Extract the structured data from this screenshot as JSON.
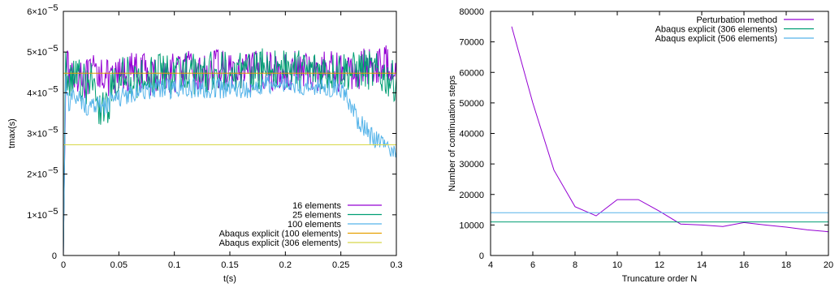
{
  "chart_data": [
    {
      "type": "line",
      "xlabel": "t(s)",
      "ylabel": "tmax(s)",
      "xlim": [
        0,
        0.3
      ],
      "ylim": [
        0,
        6e-05
      ],
      "x_ticks": [
        {
          "value": 0,
          "label": "0"
        },
        {
          "value": 0.05,
          "label": "0.05"
        },
        {
          "value": 0.1,
          "label": "0.1"
        },
        {
          "value": 0.15,
          "label": "0.15"
        },
        {
          "value": 0.2,
          "label": "0.2"
        },
        {
          "value": 0.25,
          "label": "0.25"
        },
        {
          "value": 0.3,
          "label": "0.3"
        }
      ],
      "y_ticks": [
        {
          "value": 0,
          "label": "0",
          "exp": ""
        },
        {
          "value": 1e-05,
          "label": "1×10",
          "exp": "−5"
        },
        {
          "value": 2e-05,
          "label": "2×10",
          "exp": "−5"
        },
        {
          "value": 3e-05,
          "label": "3×10",
          "exp": "−5"
        },
        {
          "value": 4e-05,
          "label": "4×10",
          "exp": "−5"
        },
        {
          "value": 5e-05,
          "label": "5×10",
          "exp": "−5"
        },
        {
          "value": 6e-05,
          "label": "6×10",
          "exp": "−5"
        }
      ],
      "legend_position": "bottom-right",
      "grid": false,
      "series": [
        {
          "name": "16 elements",
          "color": "#9400d3",
          "x": [
            0,
            0.002,
            0.005,
            0.01,
            0.015,
            0.02,
            0.025,
            0.03,
            0.035,
            0.04,
            0.045,
            0.05,
            0.06,
            0.07,
            0.08,
            0.09,
            0.1,
            0.11,
            0.12,
            0.13,
            0.14,
            0.15,
            0.16,
            0.17,
            0.18,
            0.19,
            0.2,
            0.21,
            0.22,
            0.23,
            0.24,
            0.25,
            0.26,
            0.27,
            0.28,
            0.29,
            0.3
          ],
          "y": [
            0.0,
            4.6e-05,
            4.5e-05,
            4.4e-05,
            4.6e-05,
            4.3e-05,
            4.4e-05,
            4.5e-05,
            4.6e-05,
            4.3e-05,
            4.2e-05,
            4.4e-05,
            4.5e-05,
            4.5e-05,
            4.4e-05,
            4.5e-05,
            4.5e-05,
            4.6e-05,
            4.4e-05,
            4.5e-05,
            4.6e-05,
            4.5e-05,
            4.4e-05,
            4.5e-05,
            4.6e-05,
            4.5e-05,
            4.5e-05,
            4.6e-05,
            4.5e-05,
            4.5e-05,
            4.6e-05,
            4.5e-05,
            4.5e-05,
            4.6e-05,
            4.7e-05,
            4.7e-05,
            4.8e-05
          ],
          "noise": 5e-06
        },
        {
          "name": "25 elements",
          "color": "#009e73",
          "x": [
            0,
            0.002,
            0.005,
            0.01,
            0.015,
            0.02,
            0.025,
            0.03,
            0.035,
            0.04,
            0.045,
            0.05,
            0.06,
            0.07,
            0.08,
            0.09,
            0.1,
            0.11,
            0.12,
            0.13,
            0.14,
            0.15,
            0.16,
            0.17,
            0.18,
            0.19,
            0.2,
            0.21,
            0.22,
            0.23,
            0.24,
            0.25,
            0.26,
            0.27,
            0.28,
            0.29,
            0.3
          ],
          "y": [
            0.0,
            4.6e-05,
            4.4e-05,
            4.5e-05,
            4.3e-05,
            4.2e-05,
            4.3e-05,
            3.7e-05,
            3.7e-05,
            3.7e-05,
            4.2e-05,
            4.4e-05,
            4.4e-05,
            4.3e-05,
            4.4e-05,
            4.5e-05,
            4.4e-05,
            4.6e-05,
            4.4e-05,
            4.5e-05,
            4.6e-05,
            4.5e-05,
            4.6e-05,
            4.5e-05,
            4.6e-05,
            4.6e-05,
            4.6e-05,
            4.6e-05,
            4.5e-05,
            4.6e-05,
            4.5e-05,
            4.6e-05,
            4.5e-05,
            4.6e-05,
            4.5e-05,
            4.4e-05,
            4.25e-05
          ],
          "noise": 5e-06
        },
        {
          "name": "100 elements",
          "color": "#56b4e9",
          "x": [
            0,
            0.002,
            0.005,
            0.01,
            0.015,
            0.02,
            0.025,
            0.03,
            0.035,
            0.04,
            0.045,
            0.05,
            0.06,
            0.07,
            0.08,
            0.09,
            0.1,
            0.11,
            0.12,
            0.13,
            0.14,
            0.15,
            0.16,
            0.17,
            0.18,
            0.19,
            0.2,
            0.21,
            0.22,
            0.23,
            0.24,
            0.25,
            0.255,
            0.26,
            0.265,
            0.27,
            0.275,
            0.28,
            0.285,
            0.29,
            0.295,
            0.3
          ],
          "y": [
            0.0,
            4.3e-05,
            3.8e-05,
            3.9e-05,
            3.8e-05,
            3.7e-05,
            3.6e-05,
            3.7e-05,
            3.7e-05,
            3.7e-05,
            3.9e-05,
            3.9e-05,
            4e-05,
            4e-05,
            4.1e-05,
            4.1e-05,
            4.1e-05,
            4.1e-05,
            4.1e-05,
            4.1e-05,
            4.1e-05,
            4.1e-05,
            4.1e-05,
            4.1e-05,
            4.2e-05,
            4.2e-05,
            4.2e-05,
            4.2e-05,
            4.2e-05,
            4.15e-05,
            4.15e-05,
            4.1e-05,
            3.9e-05,
            3.6e-05,
            3.35e-05,
            3.2e-05,
            3e-05,
            2.9e-05,
            2.8e-05,
            2.7e-05,
            2.6e-05,
            2.55e-05
          ],
          "noise": 2.5e-06
        },
        {
          "name": "Abaqus explicit (100 elements)",
          "color": "#e69f00",
          "x": [
            0,
            0.3
          ],
          "y": [
            4.48e-05,
            4.48e-05
          ],
          "noise": 0
        },
        {
          "name": "Abaqus explicit (306 elements)",
          "color": "#d8d84a",
          "x": [
            0,
            0.3
          ],
          "y": [
            2.72e-05,
            2.72e-05
          ],
          "noise": 0
        }
      ]
    },
    {
      "type": "line",
      "xlabel": "Truncature order N",
      "ylabel": "Number of continuation steps",
      "xlim": [
        4,
        20
      ],
      "ylim": [
        0,
        80000
      ],
      "x_ticks": [
        {
          "value": 4,
          "label": "4"
        },
        {
          "value": 6,
          "label": "6"
        },
        {
          "value": 8,
          "label": "8"
        },
        {
          "value": 10,
          "label": "10"
        },
        {
          "value": 12,
          "label": "12"
        },
        {
          "value": 14,
          "label": "14"
        },
        {
          "value": 16,
          "label": "16"
        },
        {
          "value": 18,
          "label": "18"
        },
        {
          "value": 20,
          "label": "20"
        }
      ],
      "y_ticks": [
        {
          "value": 0,
          "label": "0"
        },
        {
          "value": 10000,
          "label": "10000"
        },
        {
          "value": 20000,
          "label": "20000"
        },
        {
          "value": 30000,
          "label": "30000"
        },
        {
          "value": 40000,
          "label": "40000"
        },
        {
          "value": 50000,
          "label": "50000"
        },
        {
          "value": 60000,
          "label": "60000"
        },
        {
          "value": 70000,
          "label": "70000"
        },
        {
          "value": 80000,
          "label": "80000"
        }
      ],
      "legend_position": "top-right",
      "grid": false,
      "series": [
        {
          "name": "Perturbation method",
          "color": "#9400d3",
          "x": [
            5,
            6,
            7,
            8,
            9,
            10,
            11,
            12,
            13,
            14,
            15,
            16,
            17,
            18,
            19,
            20
          ],
          "y": [
            75000,
            50000,
            28000,
            16000,
            13000,
            18300,
            18300,
            14500,
            10300,
            10000,
            9500,
            10800,
            10000,
            9300,
            8400,
            7800
          ]
        },
        {
          "name": "Abaqus explicit (306 elements)",
          "color": "#009e73",
          "x": [
            4,
            20
          ],
          "y": [
            11000,
            11000
          ]
        },
        {
          "name": "Abaqus explicit (506 elements)",
          "color": "#56b4e9",
          "x": [
            4,
            20
          ],
          "y": [
            14000,
            14000
          ]
        }
      ]
    }
  ]
}
